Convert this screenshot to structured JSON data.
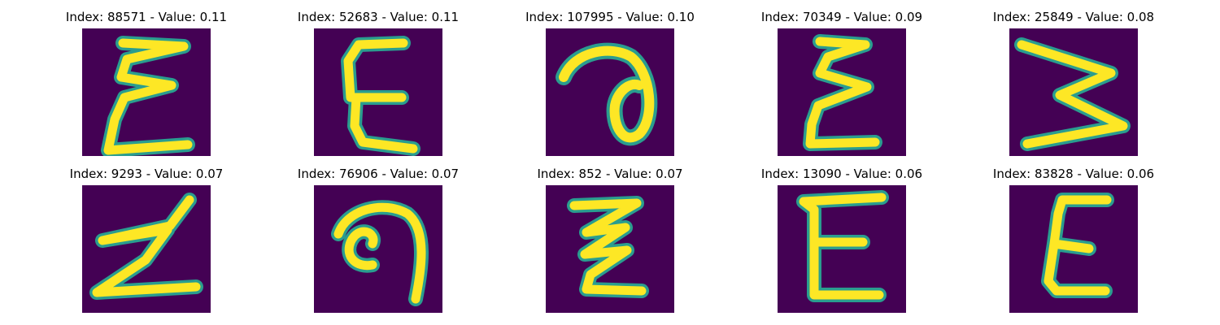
{
  "colors": {
    "background": "#440154",
    "stroke_core": "#fde725",
    "stroke_edge": "#2a9d8f"
  },
  "panels": [
    {
      "title": "Index: 88571 - Value: 0.11",
      "glyph": "Σ-like handwritten E"
    },
    {
      "title": "Index: 52683 - Value: 0.11",
      "glyph": "handwritten E"
    },
    {
      "title": "Index: 107995 - Value: 0.10",
      "glyph": "curled loop"
    },
    {
      "title": "Index: 70349 - Value: 0.09",
      "glyph": "handwritten Σ"
    },
    {
      "title": "Index: 25849 - Value: 0.08",
      "glyph": "sideways zigzag"
    },
    {
      "title": "Index: 9293 - Value: 0.07",
      "glyph": "handwritten Z"
    },
    {
      "title": "Index: 76906 - Value: 0.07",
      "glyph": "curled hook"
    },
    {
      "title": "Index: 852 - Value: 0.07",
      "glyph": "zigzag"
    },
    {
      "title": "Index: 13090 - Value: 0.06",
      "glyph": "block E"
    },
    {
      "title": "Index: 83828 - Value: 0.06",
      "glyph": "slanted E"
    }
  ]
}
